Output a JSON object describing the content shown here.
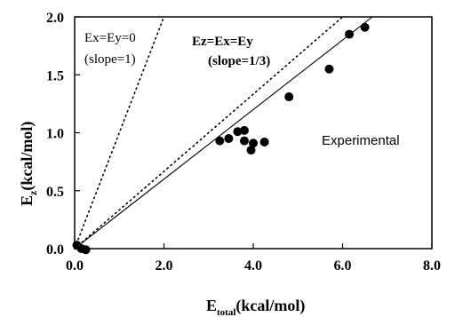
{
  "chart_data": {
    "type": "scatter",
    "xlabel": "E",
    "xlabel_sub": "total",
    "xlabel_unit": "(kcal/mol)",
    "ylabel": "E",
    "ylabel_sub": "z",
    "ylabel_unit": "(kcal/mol)",
    "xlim": [
      0,
      8
    ],
    "ylim": [
      0,
      2
    ],
    "x_ticks": [
      "0.0",
      "2.0",
      "4.0",
      "6.0",
      "8.0"
    ],
    "y_ticks": [
      "0.0",
      "0.5",
      "1.0",
      "1.5",
      "2.0"
    ],
    "grid": false,
    "series": [
      {
        "name": "Experimental",
        "points": [
          {
            "x": 0.05,
            "y": 0.03
          },
          {
            "x": 0.15,
            "y": 0.0
          },
          {
            "x": 0.25,
            "y": -0.01
          },
          {
            "x": 3.25,
            "y": 0.93
          },
          {
            "x": 3.45,
            "y": 0.95
          },
          {
            "x": 3.65,
            "y": 1.01
          },
          {
            "x": 3.8,
            "y": 1.02
          },
          {
            "x": 3.8,
            "y": 0.93
          },
          {
            "x": 3.95,
            "y": 0.85
          },
          {
            "x": 4.0,
            "y": 0.91
          },
          {
            "x": 4.25,
            "y": 0.92
          },
          {
            "x": 4.8,
            "y": 1.31
          },
          {
            "x": 5.7,
            "y": 1.55
          },
          {
            "x": 6.15,
            "y": 1.85
          },
          {
            "x": 6.5,
            "y": 1.91
          }
        ]
      }
    ],
    "reference_lines": [
      {
        "label": "Ex=Ey=0",
        "note": "(slope=1)",
        "slope": 1,
        "style": "dotted"
      },
      {
        "label": "Ez=Ex=Ey",
        "note": "(slope=1/3)",
        "slope": 0.3333,
        "style": "dotted"
      },
      {
        "label": "",
        "slope": 0.3,
        "style": "solid"
      }
    ],
    "annotations": {
      "line1_main": "Ex=Ey=0",
      "line1_note": "(slope=1)",
      "line2_main": "Ez=Ex=Ey",
      "line2_note": "(slope=1/3)",
      "experimental": "Experimental"
    }
  }
}
